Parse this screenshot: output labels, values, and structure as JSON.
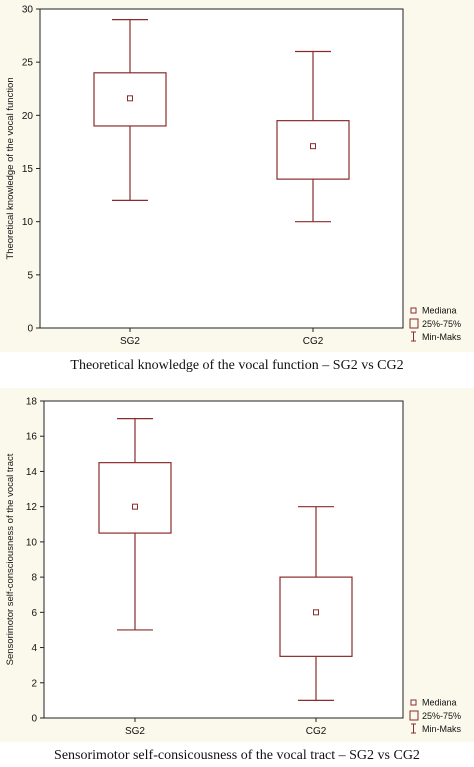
{
  "colors": {
    "box": "#8b2c2c",
    "background": "#fbf9ec",
    "axis": "#222222"
  },
  "chart_data": [
    {
      "type": "box",
      "ylabel": "Theoretical knowledge of the vocal function",
      "ylim": [
        0,
        30
      ],
      "yticks": [
        0,
        5,
        10,
        15,
        20,
        25,
        30
      ],
      "categories": [
        "SG2",
        "CG2"
      ],
      "boxes": [
        {
          "category": "SG2",
          "min": 12,
          "q1": 19,
          "median": 21.6,
          "q3": 24,
          "max": 29
        },
        {
          "category": "CG2",
          "min": 10,
          "q1": 14,
          "median": 17.1,
          "q3": 19.5,
          "max": 26
        }
      ],
      "legend": {
        "median": "Mediana",
        "iqr": "25%-75%",
        "range": "Min-Maks"
      },
      "caption": "Theoretical knowledge of the vocal function – SG2 vs CG2"
    },
    {
      "type": "box",
      "ylabel": "Sensorimotor self-consciousness of the vocal tract",
      "ylim": [
        0,
        18
      ],
      "yticks": [
        0,
        2,
        4,
        6,
        8,
        10,
        12,
        14,
        16,
        18
      ],
      "categories": [
        "SG2",
        "CG2"
      ],
      "boxes": [
        {
          "category": "SG2",
          "min": 5,
          "q1": 10.5,
          "median": 12,
          "q3": 14.5,
          "max": 17
        },
        {
          "category": "CG2",
          "min": 1,
          "q1": 3.5,
          "median": 6,
          "q3": 8,
          "max": 12
        }
      ],
      "legend": {
        "median": "Mediana",
        "iqr": "25%-75%",
        "range": "Min-Maks"
      },
      "caption": "Sensorimotor self-consicousness of the vocal tract – SG2 vs CG2"
    }
  ]
}
